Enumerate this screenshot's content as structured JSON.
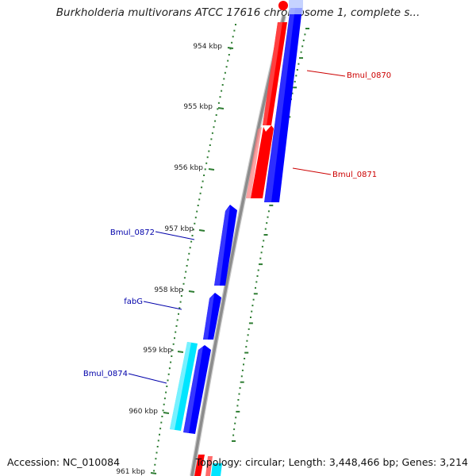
{
  "title": "Burkholderia multivorans ATCC 17616 chromosome 1, complete s...",
  "footer": {
    "accession": "Accession: NC_010084",
    "topology": "Topology: circular; Length: 3,448,466 bp; Genes: 3,214"
  },
  "colors": {
    "forward_gene": "#ff0000",
    "reverse_gene": "#0000ff",
    "cyan_gene": "#00e5ff",
    "backbone": "#8c8c8c",
    "tick": "#2e7d32",
    "label_red": "#cc0000",
    "label_blue": "#0000aa"
  },
  "ticks": [
    {
      "label": "954 kbp"
    },
    {
      "label": "955 kbp"
    },
    {
      "label": "956 kbp"
    },
    {
      "label": "957 kbp"
    },
    {
      "label": "958 kbp"
    },
    {
      "label": "959 kbp"
    },
    {
      "label": "960 kbp"
    },
    {
      "label": "961 kbp"
    }
  ],
  "genes": [
    {
      "name": "Bmul_0870",
      "strand": "forward"
    },
    {
      "name": "Bmul_0871",
      "strand": "forward"
    },
    {
      "name": "Bmul_0872",
      "strand": "reverse"
    },
    {
      "name": "fabG",
      "strand": "reverse"
    },
    {
      "name": "Bmul_0874",
      "strand": "reverse"
    }
  ]
}
